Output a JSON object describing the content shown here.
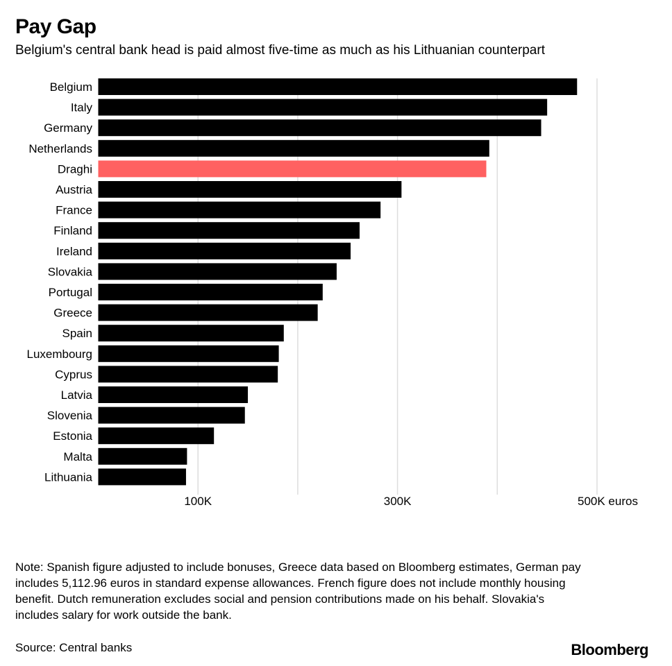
{
  "title": "Pay Gap",
  "subtitle": "Belgium's central bank head is paid almost five-time as much as his Lithuanian counterpart",
  "note": "Note: Spanish figure adjusted to include bonuses, Greece data based on Bloomberg estimates, German pay includes 5,112.96 euros in standard expense allowances. French figure does not include monthly housing benefit. Dutch remuneration excludes social and pension contributions made on his behalf. Slovakia's includes salary for work outside the bank.",
  "source": "Source: Central banks",
  "logo": "Bloomberg",
  "colors": {
    "bar": "#000000",
    "highlight": "#ff6161",
    "grid": "#dddddd"
  },
  "chart_data": {
    "type": "bar",
    "orientation": "horizontal",
    "title": "Pay Gap",
    "xlabel": "euros",
    "xlim": [
      0,
      500000
    ],
    "xticks": [
      100000,
      300000,
      500000
    ],
    "xtick_labels": [
      "100K",
      "300K",
      "500K euros"
    ],
    "gridlines": [
      100000,
      200000,
      300000,
      400000,
      500000
    ],
    "categories": [
      "Belgium",
      "Italy",
      "Germany",
      "Netherlands",
      "Draghi",
      "Austria",
      "France",
      "Finland",
      "Ireland",
      "Slovakia",
      "Portugal",
      "Greece",
      "Spain",
      "Luxembourg",
      "Cyprus",
      "Latvia",
      "Slovenia",
      "Estonia",
      "Malta",
      "Lithuania"
    ],
    "values": [
      480000,
      450000,
      444000,
      392000,
      389000,
      304000,
      283000,
      262000,
      253000,
      239000,
      225000,
      220000,
      186000,
      181000,
      180000,
      150000,
      147000,
      116000,
      89000,
      88000
    ],
    "highlight": "Draghi"
  }
}
